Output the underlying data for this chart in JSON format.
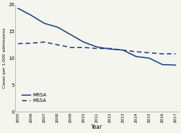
{
  "years": [
    2005,
    2006,
    2007,
    2008,
    2009,
    2010,
    2011,
    2012,
    2013,
    2014,
    2015,
    2016,
    2017
  ],
  "mrsa": [
    19.3,
    18.0,
    16.5,
    15.8,
    14.4,
    13.0,
    12.1,
    11.7,
    11.5,
    10.3,
    10.0,
    8.8,
    8.7
  ],
  "mssa": [
    12.7,
    12.8,
    13.0,
    12.5,
    12.0,
    12.0,
    11.8,
    11.8,
    11.5,
    11.2,
    11.0,
    10.8,
    10.8
  ],
  "line_color": "#1a4480",
  "ylabel": "Cases per 1,000 admissions",
  "xlabel": "Year",
  "ylim": [
    0,
    20
  ],
  "yticks": [
    0,
    5,
    10,
    15,
    20
  ],
  "legend_mrsa": "MRSA",
  "legend_mssa": "MSSA",
  "bg_color": "#f5f5f0"
}
